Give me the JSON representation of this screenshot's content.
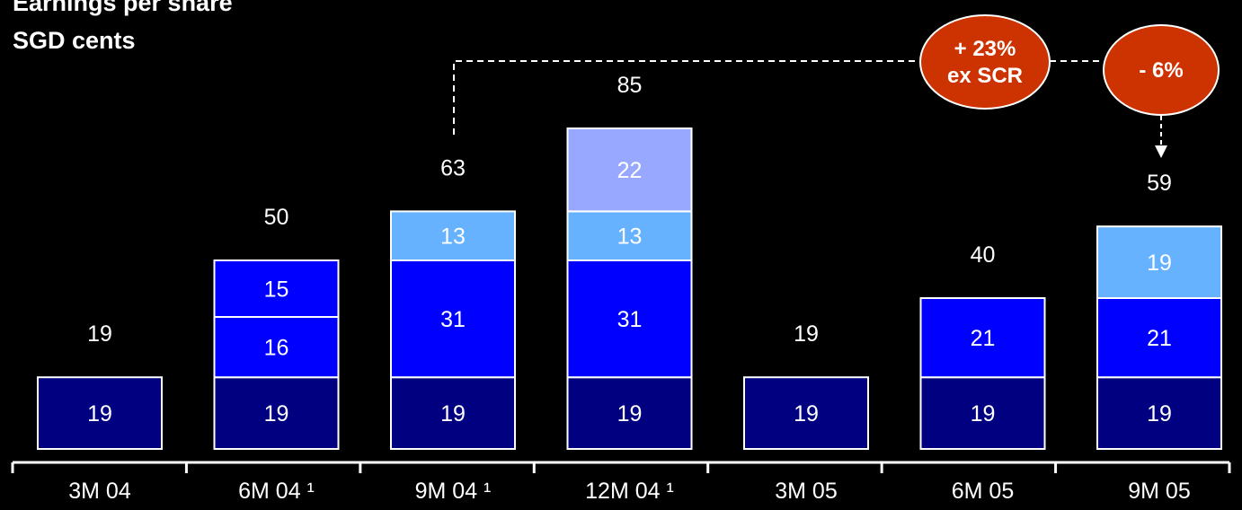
{
  "chart_data": {
    "type": "bar",
    "stacked": true,
    "title": "Earnings per share",
    "subtitle": "SGD cents",
    "categories": [
      "3M 04",
      "6M 04 ¹",
      "9M 04 ¹",
      "12M 04 ¹",
      "3M 05",
      "6M 05",
      "9M 05"
    ],
    "series": [
      {
        "color": "#000080",
        "values": [
          19,
          19,
          19,
          19,
          19,
          19,
          19
        ]
      },
      {
        "color": "#0000FF",
        "values": [
          null,
          16,
          31,
          31,
          null,
          21,
          21
        ]
      },
      {
        "color": "#0000FF",
        "values": [
          null,
          15,
          null,
          null,
          null,
          null,
          null
        ]
      },
      {
        "color": "#66B2FF",
        "values": [
          null,
          null,
          13,
          13,
          null,
          null,
          19
        ]
      },
      {
        "color": "#99A8FF",
        "values": [
          null,
          null,
          null,
          22,
          null,
          null,
          null
        ]
      }
    ],
    "totals": [
      "19",
      "50",
      "63",
      "85",
      "19",
      "40",
      "59"
    ],
    "ylim": [
      0,
      85
    ],
    "annotations": [
      {
        "text_lines": [
          "+ 23%",
          "ex SCR"
        ],
        "color": "#CC3300"
      },
      {
        "text_lines": [
          "- 6%"
        ],
        "color": "#CC3300"
      }
    ]
  }
}
